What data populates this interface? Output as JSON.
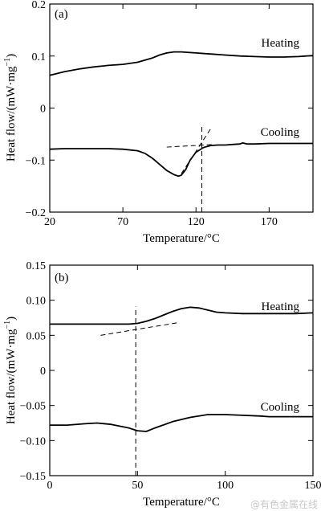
{
  "chart_data": [
    {
      "type": "line",
      "panel_label": "(a)",
      "xlabel": "Temperature/°C",
      "ylabel": "Heat flow/(mW·mg",
      "ylabel_sup": "−1",
      "ylabel_tail": ")",
      "xlim": [
        20,
        200
      ],
      "ylim": [
        -0.2,
        0.2
      ],
      "xticks": [
        20,
        70,
        120,
        170
      ],
      "xtick_labels": [
        "20",
        "70",
        "120",
        "170"
      ],
      "yticks": [
        -0.2,
        -0.1,
        0,
        0.1,
        0.2
      ],
      "ytick_labels": [
        "−0.2",
        "−0.1",
        "0",
        "0.1",
        "0.2"
      ],
      "grid": false,
      "series": [
        {
          "name": "Heating",
          "x": [
            20,
            30,
            40,
            50,
            60,
            70,
            80,
            90,
            95,
            100,
            105,
            110,
            120,
            130,
            140,
            150,
            160,
            170,
            180,
            190,
            200
          ],
          "y": [
            0.063,
            0.07,
            0.075,
            0.079,
            0.082,
            0.084,
            0.088,
            0.096,
            0.102,
            0.106,
            0.108,
            0.108,
            0.106,
            0.104,
            0.102,
            0.1,
            0.099,
            0.098,
            0.098,
            0.099,
            0.101
          ]
        },
        {
          "name": "Cooling",
          "x": [
            20,
            30,
            40,
            50,
            60,
            70,
            80,
            85,
            90,
            95,
            100,
            105,
            108,
            110,
            113,
            116,
            120,
            125,
            130,
            135,
            140,
            145,
            150,
            152,
            155,
            160,
            170,
            180,
            190,
            200
          ],
          "y": [
            -0.079,
            -0.078,
            -0.078,
            -0.078,
            -0.078,
            -0.079,
            -0.082,
            -0.087,
            -0.096,
            -0.108,
            -0.12,
            -0.128,
            -0.131,
            -0.129,
            -0.118,
            -0.1,
            -0.085,
            -0.076,
            -0.072,
            -0.071,
            -0.071,
            -0.07,
            -0.069,
            -0.067,
            -0.069,
            -0.069,
            -0.068,
            -0.068,
            -0.068,
            -0.068
          ]
        }
      ],
      "guides": [
        {
          "x": [
            100,
            132
          ],
          "y": [
            -0.075,
            -0.07
          ]
        },
        {
          "x": [
            110,
            130
          ],
          "y": [
            -0.126,
            -0.04
          ]
        },
        {
          "x": [
            124,
            124
          ],
          "y": [
            -0.2,
            -0.033
          ]
        }
      ]
    },
    {
      "type": "line",
      "panel_label": "(b)",
      "xlabel": "Temperature/°C",
      "ylabel": "Heat flow/(mW·mg",
      "ylabel_sup": "−1",
      "ylabel_tail": ")",
      "xlim": [
        0,
        150
      ],
      "ylim": [
        -0.15,
        0.15
      ],
      "xticks": [
        0,
        50,
        100,
        150
      ],
      "xtick_labels": [
        "0",
        "50",
        "100",
        "150"
      ],
      "yticks": [
        -0.15,
        -0.1,
        -0.05,
        0,
        0.05,
        0.1,
        0.15
      ],
      "ytick_labels": [
        "−0.15",
        "−0.10",
        "−0.05",
        "0",
        "0.05",
        "0.10",
        "0.15"
      ],
      "grid": false,
      "series": [
        {
          "name": "Heating",
          "x": [
            0,
            10,
            20,
            30,
            40,
            45,
            50,
            55,
            60,
            65,
            70,
            75,
            80,
            85,
            90,
            95,
            100,
            110,
            120,
            130,
            140,
            150
          ],
          "y": [
            0.066,
            0.066,
            0.066,
            0.066,
            0.066,
            0.066,
            0.067,
            0.07,
            0.074,
            0.079,
            0.084,
            0.088,
            0.09,
            0.089,
            0.086,
            0.083,
            0.082,
            0.081,
            0.081,
            0.081,
            0.081,
            0.082
          ]
        },
        {
          "name": "Cooling",
          "x": [
            0,
            10,
            20,
            27,
            35,
            45,
            50,
            55,
            60,
            70,
            80,
            90,
            100,
            110,
            120,
            125,
            130,
            140,
            150
          ],
          "y": [
            -0.078,
            -0.078,
            -0.076,
            -0.075,
            -0.077,
            -0.082,
            -0.086,
            -0.087,
            -0.082,
            -0.073,
            -0.067,
            -0.063,
            -0.063,
            -0.064,
            -0.065,
            -0.066,
            -0.066,
            -0.066,
            -0.066
          ]
        }
      ],
      "guides": [
        {
          "x": [
            29,
            73
          ],
          "y": [
            0.05,
            0.068
          ]
        },
        {
          "x": [
            49,
            49
          ],
          "y": [
            -0.15,
            0.091
          ]
        }
      ]
    }
  ],
  "watermark": "@有色金属在线"
}
